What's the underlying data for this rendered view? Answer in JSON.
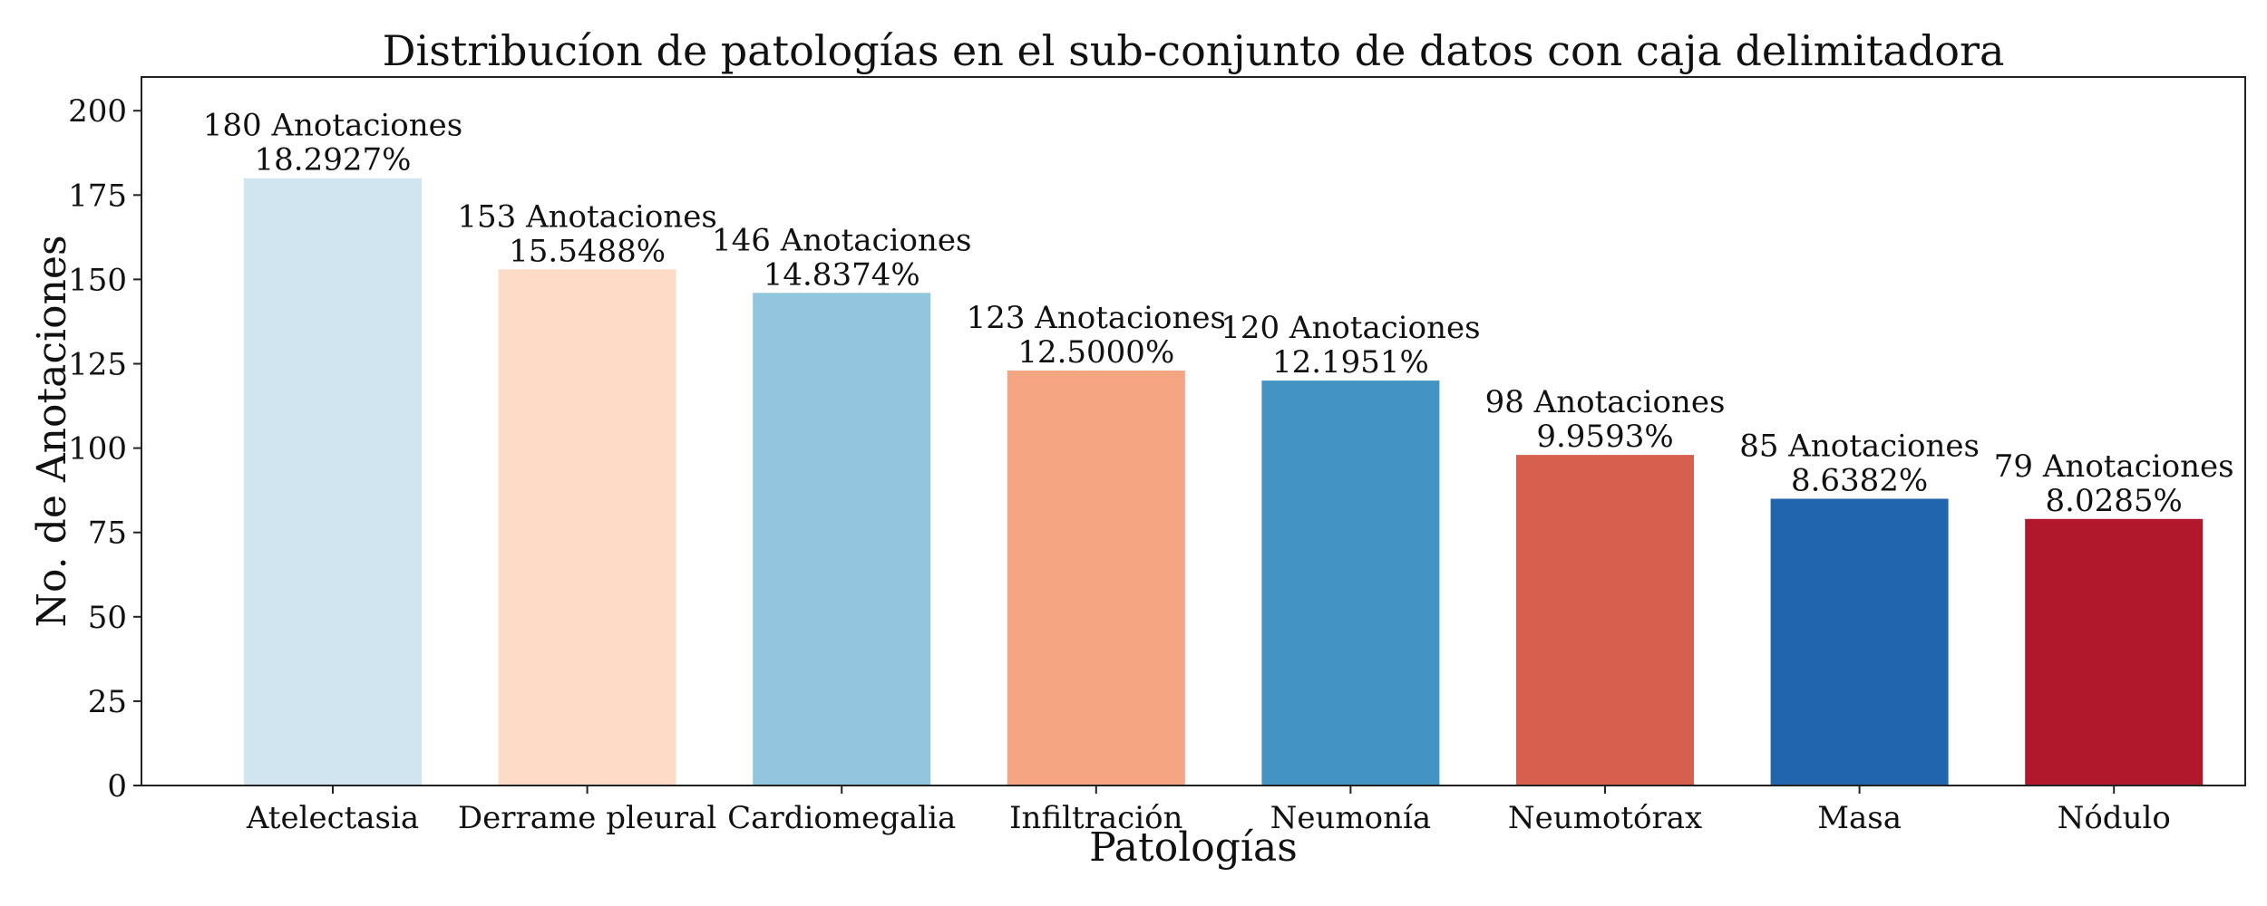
{
  "chart_data": {
    "type": "bar",
    "title": "Distribucíon de patologías en el sub-conjunto de datos con caja delimitadora",
    "xlabel": "Patologías",
    "ylabel": "No. de Anotaciones",
    "ylim": [
      0,
      210
    ],
    "yticks": [
      0,
      25,
      50,
      75,
      100,
      125,
      150,
      175,
      200
    ],
    "ytick_labels": [
      "0",
      "25",
      "50",
      "75",
      "100",
      "125",
      "150",
      "175",
      "200"
    ],
    "grid": false,
    "categories": [
      "Atelectasia",
      "Derrame pleural",
      "Cardiomegalia",
      "Infiltración",
      "Neumonía",
      "Neumotórax",
      "Masa",
      "Nódulo"
    ],
    "values": [
      180,
      153,
      146,
      123,
      120,
      98,
      85,
      79
    ],
    "value_labels": [
      "180 Anotaciones",
      "153 Anotaciones",
      "146 Anotaciones",
      "123 Anotaciones",
      "120 Anotaciones",
      "98 Anotaciones",
      "85 Anotaciones",
      "79 Anotaciones"
    ],
    "percent_labels": [
      "18.2927%",
      "15.5488%",
      "14.8374%",
      "12.5000%",
      "12.1951%",
      "9.9593%",
      "8.6382%",
      "8.0285%"
    ],
    "colors": [
      "#d1e5f0",
      "#fddbc7",
      "#92c5de",
      "#f4a582",
      "#4393c3",
      "#d6604d",
      "#2166ac",
      "#b2182b"
    ]
  }
}
